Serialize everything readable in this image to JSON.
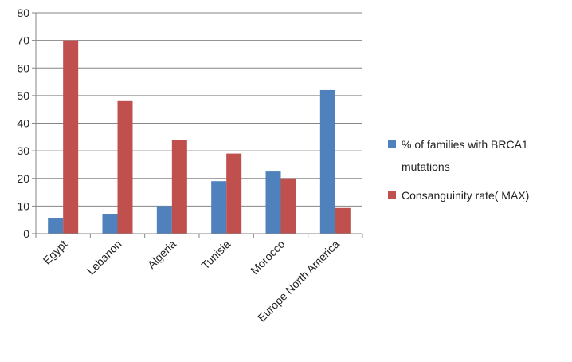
{
  "chart_data": {
    "type": "bar",
    "categories": [
      "Egypt",
      "Lebanon",
      "Algeria",
      "Tunisia",
      "Morocco",
      "Europe North America"
    ],
    "series": [
      {
        "name": "% of families with  BRCA1 mutations",
        "name_lines": [
          "% of families with  BRCA1",
          "mutations"
        ],
        "color": "#4f81bd",
        "values": [
          5.7,
          7,
          10,
          19,
          22.5,
          52
        ]
      },
      {
        "name": "Consanguinity rate( MAX)",
        "name_lines": [
          "Consanguinity rate( MAX)"
        ],
        "color": "#c0504d",
        "values": [
          70,
          48,
          34,
          29,
          20,
          9.3
        ]
      }
    ],
    "ylim": [
      0,
      80
    ],
    "yticks": [
      "0",
      "10",
      "20",
      "30",
      "40",
      "50",
      "60",
      "70",
      "80"
    ],
    "grid": true,
    "legend": "right"
  }
}
